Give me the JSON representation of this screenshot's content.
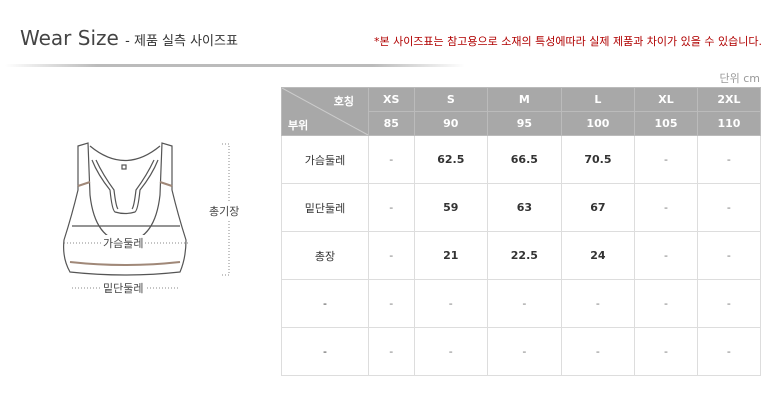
{
  "header": {
    "title": "Wear Size",
    "subtitle": "- 제품 실측 사이즈표",
    "notice": "*본 사이즈표는 참고용으로 소재의 특성에따라 실제 제품과 차이가 있을 수 있습니다.",
    "unit": "단위 cm"
  },
  "illustration": {
    "chest_label": "가슴둘레",
    "hem_label": "밑단둘레",
    "length_label": "총기장"
  },
  "table": {
    "corner_top": "호칭",
    "corner_bottom": "부위",
    "sizes": [
      "XS",
      "S",
      "M",
      "L",
      "XL",
      "2XL"
    ],
    "numbers": [
      "85",
      "90",
      "95",
      "100",
      "105",
      "110"
    ],
    "rows": [
      {
        "label": "가슴둘레",
        "values": [
          "-",
          "62.5",
          "66.5",
          "70.5",
          "-",
          "-"
        ]
      },
      {
        "label": "밑단둘레",
        "values": [
          "-",
          "59",
          "63",
          "67",
          "-",
          "-"
        ]
      },
      {
        "label": "총장",
        "values": [
          "-",
          "21",
          "22.5",
          "24",
          "-",
          "-"
        ]
      },
      {
        "label": "-",
        "values": [
          "-",
          "-",
          "-",
          "-",
          "-",
          "-"
        ]
      },
      {
        "label": "-",
        "values": [
          "-",
          "-",
          "-",
          "-",
          "-",
          "-"
        ]
      }
    ]
  }
}
